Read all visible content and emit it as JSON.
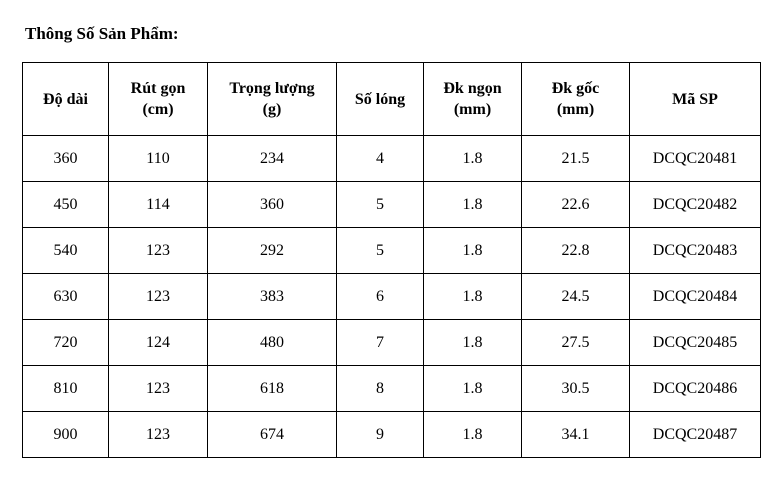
{
  "title": "Thông Số Sản Phẩm:",
  "table": {
    "headers": [
      {
        "line1": "Độ dài",
        "line2": ""
      },
      {
        "line1": "Rút gọn",
        "line2": "(cm)"
      },
      {
        "line1": "Trọng lượng",
        "line2": "(g)"
      },
      {
        "line1": "Số lóng",
        "line2": ""
      },
      {
        "line1": "Đk ngọn",
        "line2": "(mm)"
      },
      {
        "line1": "Đk gốc",
        "line2": "(mm)"
      },
      {
        "line1": "Mã SP",
        "line2": ""
      }
    ],
    "rows": [
      [
        "360",
        "110",
        "234",
        "4",
        "1.8",
        "21.5",
        "DCQC20481"
      ],
      [
        "450",
        "114",
        "360",
        "5",
        "1.8",
        "22.6",
        "DCQC20482"
      ],
      [
        "540",
        "123",
        "292",
        "5",
        "1.8",
        "22.8",
        "DCQC20483"
      ],
      [
        "630",
        "123",
        "383",
        "6",
        "1.8",
        "24.5",
        "DCQC20484"
      ],
      [
        "720",
        "124",
        "480",
        "7",
        "1.8",
        "27.5",
        "DCQC20485"
      ],
      [
        "810",
        "123",
        "618",
        "8",
        "1.8",
        "30.5",
        "DCQC20486"
      ],
      [
        "900",
        "123",
        "674",
        "9",
        "1.8",
        "34.1",
        "DCQC20487"
      ]
    ]
  }
}
